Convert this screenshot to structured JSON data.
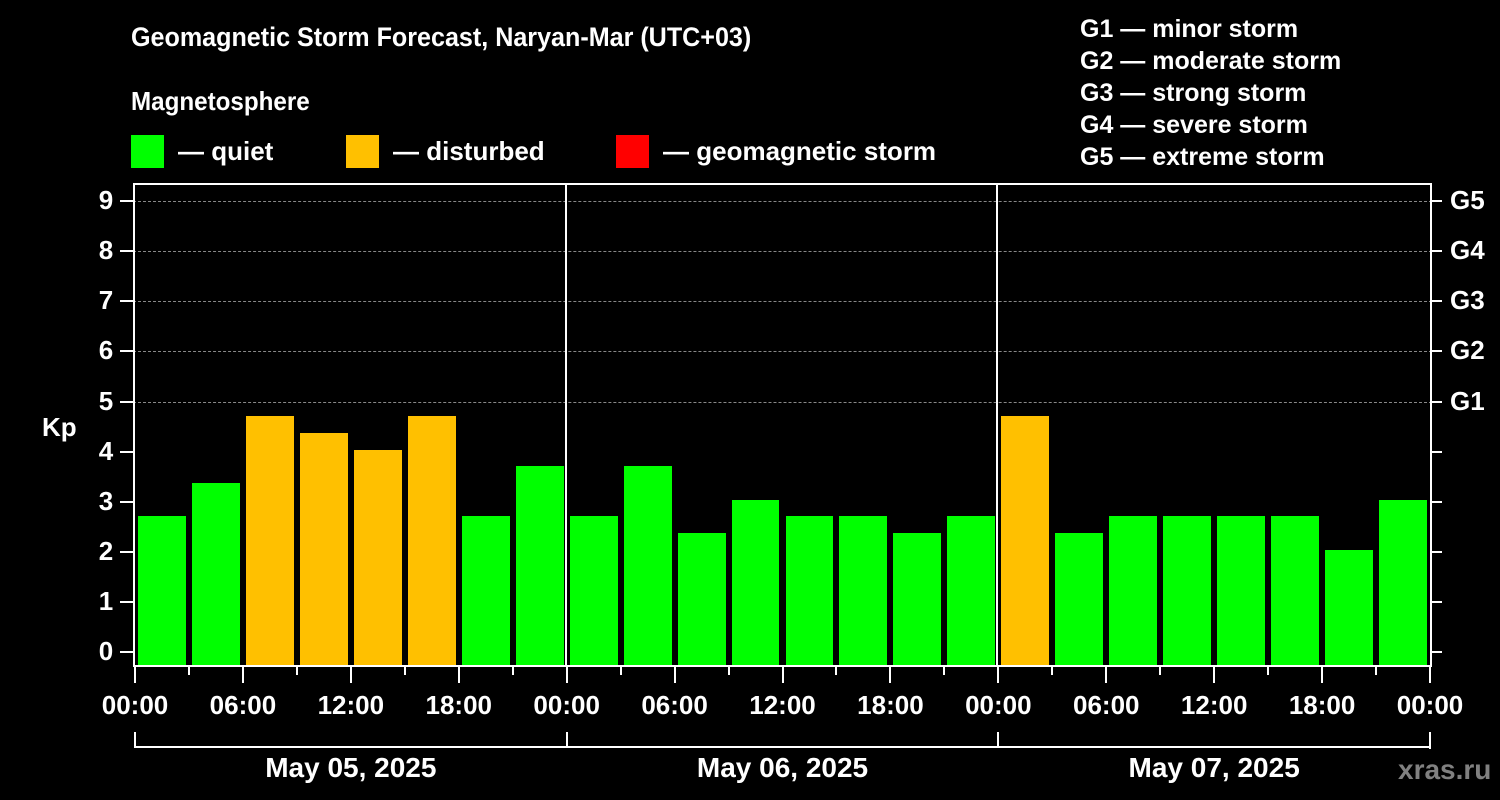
{
  "header": {
    "title": "Geomagnetic Storm Forecast, Naryan-Mar (UTC+03)",
    "subtitle": "Magnetosphere"
  },
  "legend": [
    {
      "label": "— quiet",
      "color": "#00ff00"
    },
    {
      "label": "— disturbed",
      "color": "#ffc000"
    },
    {
      "label": "— geomagnetic storm",
      "color": "#ff0000"
    }
  ],
  "g_scale": [
    "G1 — minor storm",
    "G2 — moderate storm",
    "G3 — strong storm",
    "G4 — severe storm",
    "G5 — extreme storm"
  ],
  "axes": {
    "y_label": "Kp",
    "y_ticks": [
      "0",
      "1",
      "2",
      "3",
      "4",
      "5",
      "6",
      "7",
      "8",
      "9"
    ],
    "right_labels": [
      {
        "kp": 5,
        "label": "G1"
      },
      {
        "kp": 6,
        "label": "G2"
      },
      {
        "kp": 7,
        "label": "G3"
      },
      {
        "kp": 8,
        "label": "G4"
      },
      {
        "kp": 9,
        "label": "G5"
      }
    ],
    "x_ticks": [
      "00:00",
      "06:00",
      "12:00",
      "18:00",
      "00:00",
      "06:00",
      "12:00",
      "18:00",
      "00:00",
      "06:00",
      "12:00",
      "18:00",
      "00:00"
    ],
    "dates": [
      "May 05, 2025",
      "May 06, 2025",
      "May 07, 2025"
    ]
  },
  "watermark": "xras.ru",
  "chart_data": {
    "type": "bar",
    "title": "Geomagnetic Storm Forecast, Naryan-Mar (UTC+03)",
    "subtitle": "Magnetosphere",
    "xlabel": "",
    "ylabel": "Kp",
    "ylim": [
      0,
      9
    ],
    "grid": true,
    "legend_position": "top",
    "categories": [
      "May 05 00:00",
      "May 05 03:00",
      "May 05 06:00",
      "May 05 09:00",
      "May 05 12:00",
      "May 05 15:00",
      "May 05 18:00",
      "May 05 21:00",
      "May 06 00:00",
      "May 06 03:00",
      "May 06 06:00",
      "May 06 09:00",
      "May 06 12:00",
      "May 06 15:00",
      "May 06 18:00",
      "May 06 21:00",
      "May 07 00:00",
      "May 07 03:00",
      "May 07 06:00",
      "May 07 09:00",
      "May 07 12:00",
      "May 07 15:00",
      "May 07 18:00",
      "May 07 21:00"
    ],
    "values": [
      2.67,
      3.33,
      4.67,
      4.33,
      4.0,
      4.67,
      2.67,
      3.67,
      2.67,
      3.67,
      2.33,
      3.0,
      2.67,
      2.67,
      2.33,
      2.67,
      4.67,
      2.33,
      2.67,
      2.67,
      2.67,
      2.67,
      2.0,
      3.0
    ],
    "status": [
      "quiet",
      "quiet",
      "disturbed",
      "disturbed",
      "disturbed",
      "disturbed",
      "quiet",
      "quiet",
      "quiet",
      "quiet",
      "quiet",
      "quiet",
      "quiet",
      "quiet",
      "quiet",
      "quiet",
      "disturbed",
      "quiet",
      "quiet",
      "quiet",
      "quiet",
      "quiet",
      "quiet",
      "quiet"
    ],
    "status_colors": {
      "quiet": "#00ff00",
      "disturbed": "#ffc000",
      "storm": "#ff0000"
    },
    "storm_levels": {
      "G1": 5,
      "G2": 6,
      "G3": 7,
      "G4": 8,
      "G5": 9
    }
  }
}
